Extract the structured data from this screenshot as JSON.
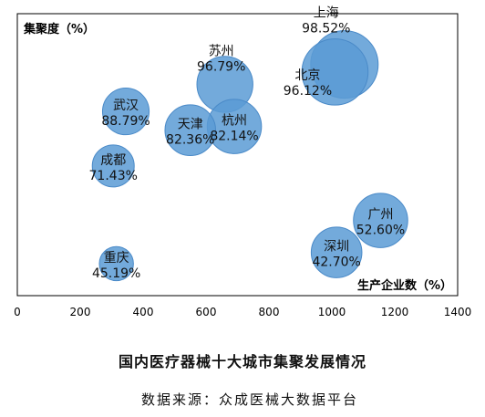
{
  "chart_data": {
    "type": "scatter",
    "title": "国内医疗器械十大城市集聚发展情况",
    "source": "数据来源：众成医械大数据平台",
    "xlabel": "生产企业数（%）",
    "ylabel": "集聚度（%）",
    "xlim": [
      0,
      1400
    ],
    "ylim": [
      35,
      110
    ],
    "xticks": [
      "0",
      "200",
      "400",
      "600",
      "800",
      "1000",
      "1200",
      "1400"
    ],
    "bubble_color": "#5b9bd5",
    "points": [
      {
        "city": "上海",
        "pct": "98.52%",
        "x": 1040,
        "y": 96.5,
        "size": 1.0
      },
      {
        "city": "北京",
        "pct": "96.12%",
        "x": 1010,
        "y": 94.5,
        "size": 0.95
      },
      {
        "city": "苏州",
        "pct": "96.79%",
        "x": 660,
        "y": 91.2,
        "size": 0.6
      },
      {
        "city": "杭州",
        "pct": "82.14%",
        "x": 690,
        "y": 80.0,
        "size": 0.55
      },
      {
        "city": "天津",
        "pct": "82.36%",
        "x": 550,
        "y": 79.0,
        "size": 0.45
      },
      {
        "city": "武汉",
        "pct": "88.79%",
        "x": 345,
        "y": 84.0,
        "size": 0.35
      },
      {
        "city": "成都",
        "pct": "71.43%",
        "x": 305,
        "y": 69.5,
        "size": 0.25
      },
      {
        "city": "重庆",
        "pct": "45.19%",
        "x": 315,
        "y": 43.5,
        "size": 0.12
      },
      {
        "city": "广州",
        "pct": "52.60%",
        "x": 1155,
        "y": 55.0,
        "size": 0.55
      },
      {
        "city": "深圳",
        "pct": "42.70%",
        "x": 1015,
        "y": 46.5,
        "size": 0.45
      }
    ]
  }
}
